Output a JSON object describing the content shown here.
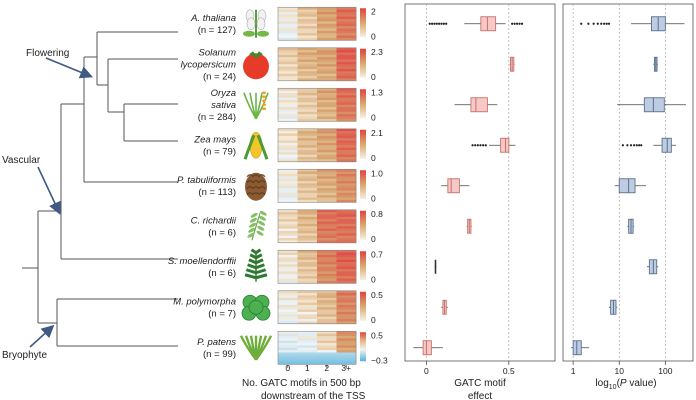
{
  "tree_labels": {
    "flowering": "Flowering",
    "vascular": "Vascular",
    "bryophyte": "Bryophyte"
  },
  "species": [
    {
      "name": "A. thaliana",
      "name_lines": [
        "A. thaliana"
      ],
      "n_text": "(n = 127)",
      "n": 127,
      "heatmap": {
        "max_label": "2",
        "min_label": "0"
      },
      "gatc_box": {
        "q1": 0.33,
        "median": 0.37,
        "q3": 0.42,
        "whisker_low": 0.23,
        "whisker_high": 0.48
      },
      "pval_box": {
        "q1": 50,
        "median": 70,
        "q3": 100,
        "whisker_low": 18,
        "whisker_high": 260
      }
    },
    {
      "name": "Solanum lycopersicum",
      "name_lines": [
        "Solanum",
        "lycopersicum"
      ],
      "n_text": "(n = 24)",
      "n": 24,
      "heatmap": {
        "max_label": "2.3",
        "min_label": "0"
      },
      "gatc_box": {
        "q1": 0.51,
        "median": 0.52,
        "q3": 0.53,
        "whisker_low": 0.505,
        "whisker_high": 0.535
      },
      "pval_box": {
        "q1": 58,
        "median": 62,
        "q3": 66,
        "whisker_low": 55,
        "whisker_high": 69
      }
    },
    {
      "name": "Oryza sativa",
      "name_lines": [
        "Oryza",
        "sativa"
      ],
      "n_text": "(n = 284)",
      "n": 284,
      "heatmap": {
        "max_label": "1.3",
        "min_label": "0"
      },
      "gatc_box": {
        "q1": 0.27,
        "median": 0.3,
        "q3": 0.37,
        "whisker_low": 0.17,
        "whisker_high": 0.43
      },
      "pval_box": {
        "q1": 35,
        "median": 55,
        "q3": 95,
        "whisker_low": 9,
        "whisker_high": 280
      }
    },
    {
      "name": "Zea mays",
      "name_lines": [
        "Zea mays"
      ],
      "n_text": "(n = 79)",
      "n": 79,
      "heatmap": {
        "max_label": "2.1",
        "min_label": "0"
      },
      "gatc_box": {
        "q1": 0.45,
        "median": 0.48,
        "q3": 0.5,
        "whisker_low": 0.38,
        "whisker_high": 0.54
      },
      "pval_box": {
        "q1": 85,
        "median": 110,
        "q3": 135,
        "whisker_low": 55,
        "whisker_high": 170
      }
    },
    {
      "name": "P. tabuliformis",
      "name_lines": [
        "P. tabuliformis"
      ],
      "n_text": "(n = 113)",
      "n": 113,
      "heatmap": {
        "max_label": "1.0",
        "min_label": "0"
      },
      "gatc_box": {
        "q1": 0.13,
        "median": 0.15,
        "q3": 0.2,
        "whisker_low": 0.09,
        "whisker_high": 0.26
      },
      "pval_box": {
        "q1": 10,
        "median": 16,
        "q3": 22,
        "whisker_low": 8,
        "whisker_high": 38
      }
    },
    {
      "name": "C. richardii",
      "name_lines": [
        "C. richardii"
      ],
      "n_text": "(n = 6)",
      "n": 6,
      "heatmap": {
        "max_label": "0.8",
        "min_label": "0"
      },
      "gatc_box": {
        "q1": 0.25,
        "median": 0.26,
        "q3": 0.27,
        "whisker_low": 0.245,
        "whisker_high": 0.275
      },
      "pval_box": {
        "q1": 16,
        "median": 18,
        "q3": 20,
        "whisker_low": 15,
        "whisker_high": 21
      }
    },
    {
      "name": "S. moellendorffii",
      "name_lines": [
        "S. moellendorffii"
      ],
      "n_text": "(n = 6)",
      "n": 6,
      "heatmap": {
        "max_label": "0.7",
        "min_label": "0"
      },
      "gatc_box": {
        "q1": 0.055,
        "median": 0.055,
        "q3": 0.055,
        "whisker_low": 0.05,
        "whisker_high": 0.06
      },
      "pval_box": {
        "q1": 45,
        "median": 55,
        "q3": 65,
        "whisker_low": 40,
        "whisker_high": 70
      }
    },
    {
      "name": "M. polymorpha",
      "name_lines": [
        "M. polymorpha"
      ],
      "n_text": "(n = 7)",
      "n": 7,
      "heatmap": {
        "max_label": "0.5",
        "min_label": "0"
      },
      "gatc_box": {
        "q1": 0.1,
        "median": 0.11,
        "q3": 0.12,
        "whisker_low": 0.09,
        "whisker_high": 0.13
      },
      "pval_box": {
        "q1": 6.5,
        "median": 7.5,
        "q3": 8.5,
        "whisker_low": 6,
        "whisker_high": 9
      }
    },
    {
      "name": "P. patens",
      "name_lines": [
        "P. patens"
      ],
      "n_text": "(n = 99)",
      "n": 99,
      "heatmap": {
        "max_label": "0.5",
        "min_label": "−0.3"
      },
      "gatc_box": {
        "q1": -0.02,
        "median": 0.0,
        "q3": 0.03,
        "whisker_low": -0.08,
        "whisker_high": 0.1
      },
      "pval_box": {
        "q1": 1.0,
        "median": 1.2,
        "q3": 1.5,
        "whisker_low": 0.9,
        "whisker_high": 2.2
      }
    }
  ],
  "heatmap_axis": {
    "ticks": [
      "0",
      "1",
      "2",
      "3+"
    ],
    "xlabel_lines": [
      "No. GATC motifs in 500 bp",
      "downstream of the TSS"
    ]
  },
  "gatc_axis": {
    "ticks": [
      0,
      0.5
    ],
    "tick_labels": [
      "0",
      "0.5"
    ],
    "xlabel_lines": [
      "GATC motif",
      "effect"
    ],
    "range": [
      -0.13,
      0.78
    ]
  },
  "pval_axis": {
    "ticks": [
      1,
      10,
      100
    ],
    "tick_labels": [
      "1",
      "10",
      "100"
    ],
    "xlabel": "log10(P value)",
    "range_log10": [
      -0.22,
      2.6
    ]
  },
  "colors": {
    "gatc_box_fill": "#f6c9c6",
    "gatc_box_stroke": "#c9706a",
    "pval_box_fill": "#bccde3",
    "pval_box_stroke": "#5e6f8c",
    "heat_low": "#f5ecd9",
    "heat_mid": "#d6a46d",
    "heat_high": "#e0524c",
    "heat_neg": "#5bb6dd",
    "tree": "#555555",
    "arrow": "#3e5a85"
  },
  "chart_data": [
    {
      "type": "box",
      "categories": [
        "A. thaliana",
        "Solanum lycopersicum",
        "Oryza sativa",
        "Zea mays",
        "P. tabuliformis",
        "C. richardii",
        "S. moellendorffii",
        "M. polymorpha",
        "P. patens"
      ],
      "xlabel": "GATC motif effect",
      "xlim": [
        -0.13,
        0.78
      ],
      "medians": [
        0.37,
        0.52,
        0.3,
        0.48,
        0.15,
        0.26,
        0.055,
        0.11,
        0.0
      ]
    },
    {
      "type": "box",
      "categories": [
        "A. thaliana",
        "Solanum lycopersicum",
        "Oryza sativa",
        "Zea mays",
        "P. tabuliformis",
        "C. richardii",
        "S. moellendorffii",
        "M. polymorpha",
        "P. patens"
      ],
      "xlabel": "log10(P value)",
      "log_scale": true,
      "medians": [
        70,
        62,
        55,
        110,
        16,
        18,
        55,
        7.5,
        1.2
      ]
    }
  ]
}
